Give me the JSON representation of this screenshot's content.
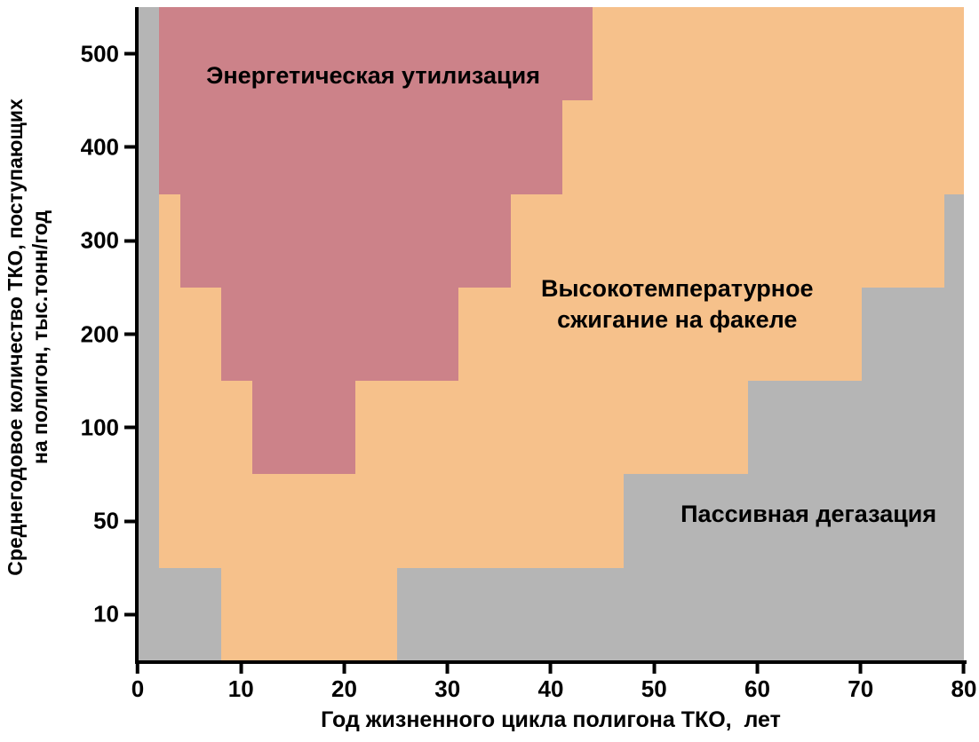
{
  "chart_data": {
    "type": "heatmap",
    "title": "",
    "xlabel": "Год жизненного цикла полигона ТКО,  лет",
    "ylabel": "Среднегодовое количество ТКО, поступающих на полигон, тыс.тонн/год",
    "ylabel_lines": [
      "Среднегодовое количество ТКО, поступающих",
      "на полигон, тыс.тонн/год"
    ],
    "xlim": [
      0,
      80
    ],
    "x_ticks": [
      0,
      10,
      20,
      30,
      40,
      50,
      60,
      70,
      80
    ],
    "y_ticks": [
      10,
      50,
      100,
      200,
      300,
      400,
      500
    ],
    "grid": false,
    "legend_position": "none",
    "axis_color": "#000000",
    "text_color": "#000000",
    "zones": [
      {
        "id": "passive",
        "label": "Пассивная дегазация",
        "color": "#b5b5b5"
      },
      {
        "id": "flare",
        "label": "Высокотемпературное сжигание на факеле",
        "label_lines": [
          "Высокотемпературное",
          "сжигание на факеле"
        ],
        "color": "#f6c18b"
      },
      {
        "id": "energy",
        "label": "Энергетическая утилизация",
        "color": "#cc8289"
      }
    ],
    "rows_note": "rows are equal-height horizontal bands of the y axis listed bottom to top; segments are [zone_id, xStart_years, xEnd_years]",
    "rows": [
      {
        "y_tick": 10,
        "segments": [
          [
            "passive",
            0,
            8
          ],
          [
            "flare",
            8,
            25
          ],
          [
            "passive",
            25,
            80
          ]
        ]
      },
      {
        "y_tick": 50,
        "segments": [
          [
            "passive",
            0,
            2
          ],
          [
            "flare",
            2,
            47
          ],
          [
            "passive",
            47,
            80
          ]
        ]
      },
      {
        "y_tick": 100,
        "segments": [
          [
            "passive",
            0,
            2
          ],
          [
            "flare",
            2,
            11
          ],
          [
            "energy",
            11,
            21
          ],
          [
            "flare",
            21,
            59
          ],
          [
            "passive",
            59,
            80
          ]
        ]
      },
      {
        "y_tick": 200,
        "segments": [
          [
            "passive",
            0,
            2
          ],
          [
            "flare",
            2,
            8
          ],
          [
            "energy",
            8,
            31
          ],
          [
            "flare",
            31,
            70
          ],
          [
            "passive",
            70,
            80
          ]
        ]
      },
      {
        "y_tick": 300,
        "segments": [
          [
            "passive",
            0,
            2
          ],
          [
            "flare",
            2,
            4
          ],
          [
            "energy",
            4,
            36
          ],
          [
            "flare",
            36,
            78
          ],
          [
            "passive",
            78,
            80
          ]
        ]
      },
      {
        "y_tick": 400,
        "segments": [
          [
            "passive",
            0,
            2
          ],
          [
            "energy",
            2,
            41
          ],
          [
            "flare",
            41,
            80
          ]
        ]
      },
      {
        "y_tick": 500,
        "segments": [
          [
            "passive",
            0,
            2
          ],
          [
            "energy",
            2,
            44
          ],
          [
            "flare",
            44,
            80
          ]
        ]
      }
    ]
  }
}
